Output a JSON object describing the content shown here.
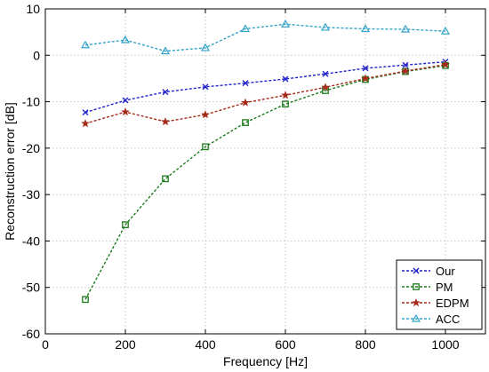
{
  "chart_data": {
    "type": "line",
    "title": "",
    "xlabel": "Frequency [Hz]",
    "ylabel": "Reconstruction error [dB]",
    "xlim": [
      0,
      1100
    ],
    "ylim": [
      -60,
      10
    ],
    "xticks": [
      0,
      200,
      400,
      600,
      800,
      1000
    ],
    "yticks": [
      10,
      0,
      -10,
      -20,
      -30,
      -40,
      -50,
      -60
    ],
    "xtick_labels": [
      "0",
      "200",
      "400",
      "600",
      "800",
      "1000"
    ],
    "ytick_labels": [
      "10",
      "0",
      "-10",
      "-20",
      "-30",
      "-40",
      "-50",
      "-60"
    ],
    "grid": true,
    "legend_position": "bottom-right",
    "x": [
      100,
      200,
      300,
      400,
      500,
      600,
      700,
      800,
      900,
      1000
    ],
    "series": [
      {
        "name": "Our",
        "color": "#2222cc",
        "marker": "x",
        "values": [
          -12.3,
          -9.7,
          -7.9,
          -6.8,
          -6.0,
          -5.1,
          -4.0,
          -2.8,
          -2.1,
          -1.4
        ]
      },
      {
        "name": "PM",
        "color": "#1b7a1b",
        "marker": "square",
        "values": [
          -52.6,
          -36.5,
          -26.6,
          -19.7,
          -14.5,
          -10.5,
          -7.6,
          -5.2,
          -3.5,
          -2.2
        ]
      },
      {
        "name": "EDPM",
        "color": "#a52a1a",
        "marker": "star",
        "values": [
          -14.7,
          -12.2,
          -14.3,
          -12.8,
          -10.2,
          -8.6,
          -6.9,
          -5.0,
          -3.4,
          -2.0
        ]
      },
      {
        "name": "ACC",
        "color": "#33a3c7",
        "marker": "triangle",
        "values": [
          2.2,
          3.3,
          0.9,
          1.6,
          5.7,
          6.7,
          6.0,
          5.7,
          5.6,
          5.2
        ]
      }
    ]
  }
}
